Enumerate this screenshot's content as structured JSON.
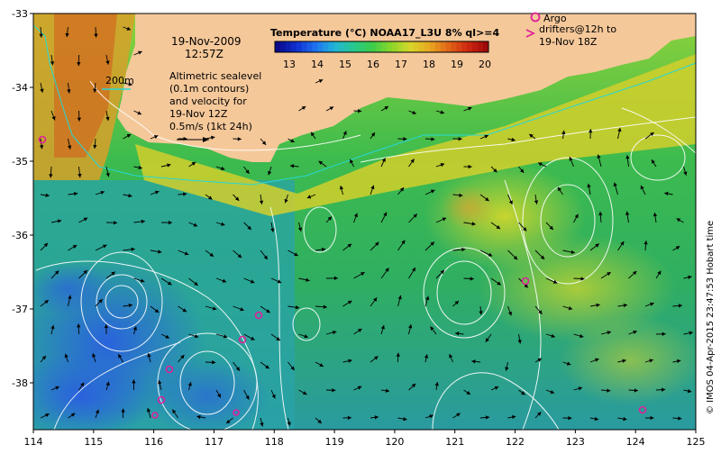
{
  "map": {
    "x_ticks": [
      "114",
      "115",
      "116",
      "117",
      "118",
      "119",
      "120",
      "121",
      "122",
      "123",
      "124",
      "125"
    ],
    "y_ticks": [
      "-33",
      "-34",
      "-35",
      "-36",
      "-37",
      "-38"
    ],
    "date": "19-Nov-2009",
    "time": "12:57Z",
    "depth_label": "200m",
    "altimetry_lines": [
      "Altimetric sealevel",
      "(0.1m contours)",
      "and velocity for",
      "19-Nov 12Z"
    ],
    "velocity_scale": "0.5m/s (1kt 24h)",
    "colorbar": {
      "title": "Temperature (°C) NOAA17_L3U 8% ql>=4",
      "labels": [
        "13",
        "14",
        "15",
        "16",
        "17",
        "18",
        "19",
        "20"
      ]
    },
    "argo_label": "Argo",
    "drifters_lines": [
      "drifters@12h to",
      "19-Nov 18Z"
    ],
    "credit": "© IMOS 04-Apr-2015 23:47:53 Hobart time",
    "colors": {
      "land": "#f5c89a",
      "sea_warm": "#d9d02e",
      "sea_mid": "#2fb75a",
      "sea_cool": "#2aa5a8",
      "sea_cold": "#2a6fd6",
      "argo": "#e0209a",
      "contour": "#ffffff",
      "bathy": "#26d7d7"
    }
  }
}
